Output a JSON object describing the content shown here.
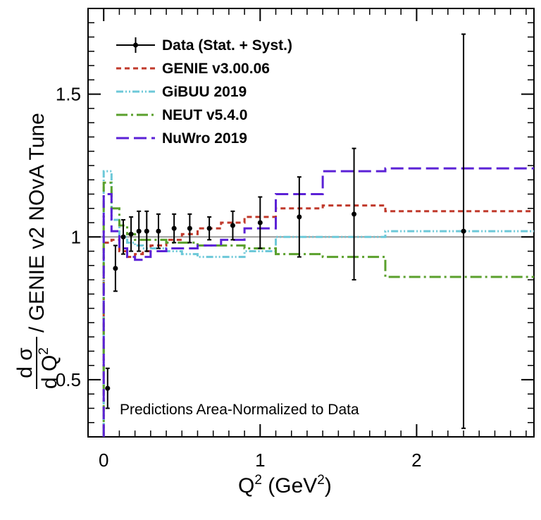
{
  "chart_data": {
    "type": "line",
    "xlabel": "Q",
    "xlabel_sup": "2",
    "xlabel_unit_open": " (GeV",
    "xlabel_unit_sup": "2",
    "xlabel_unit_close": ")",
    "ylabel": {
      "numerator": "d σ",
      "denominator": "d Q",
      "denominator_sup": "2",
      "rest": " / GENIE v2 NOvA Tune"
    },
    "annotation": "Predictions Area-Normalized to Data",
    "xlim": [
      -0.1,
      2.75
    ],
    "ylim": [
      0.3,
      1.8
    ],
    "x_ticks": [
      0,
      1,
      2
    ],
    "x_tick_labels": [
      "0",
      "1",
      "2"
    ],
    "y_ticks": [
      0.5,
      1.0,
      1.5
    ],
    "y_tick_labels": [
      "0.5",
      "1",
      "1.5"
    ],
    "reference_line": 1.0,
    "grid": false,
    "legend_position": "top-left",
    "data_series": {
      "name": "Data (Stat. + Syst.)",
      "color": "#000000",
      "points": [
        {
          "x": 0.025,
          "y": 0.47,
          "err": 0.07
        },
        {
          "x": 0.075,
          "y": 0.89,
          "err": 0.08
        },
        {
          "x": 0.125,
          "y": 1.0,
          "err": 0.06
        },
        {
          "x": 0.175,
          "y": 1.01,
          "err": 0.06
        },
        {
          "x": 0.225,
          "y": 1.02,
          "err": 0.07
        },
        {
          "x": 0.275,
          "y": 1.02,
          "err": 0.07
        },
        {
          "x": 0.35,
          "y": 1.02,
          "err": 0.06
        },
        {
          "x": 0.45,
          "y": 1.03,
          "err": 0.05
        },
        {
          "x": 0.55,
          "y": 1.03,
          "err": 0.05
        },
        {
          "x": 0.675,
          "y": 1.03,
          "err": 0.04
        },
        {
          "x": 0.825,
          "y": 1.04,
          "err": 0.05
        },
        {
          "x": 1.0,
          "y": 1.05,
          "err": 0.09
        },
        {
          "x": 1.25,
          "y": 1.07,
          "err": 0.14
        },
        {
          "x": 1.6,
          "y": 1.08,
          "err": 0.23
        },
        {
          "x": 2.3,
          "y": 1.02,
          "err": 0.69
        }
      ]
    },
    "bin_edges": [
      0,
      0.05,
      0.1,
      0.15,
      0.2,
      0.25,
      0.3,
      0.4,
      0.5,
      0.6,
      0.75,
      0.9,
      1.1,
      1.4,
      1.8,
      2.8
    ],
    "series": [
      {
        "name": "GENIE v3.00.06",
        "color": "#c0392b",
        "dash": "7,5",
        "start": 0.32,
        "values": [
          0.98,
          0.99,
          0.95,
          0.93,
          0.94,
          0.95,
          0.97,
          0.99,
          1.01,
          1.03,
          1.05,
          1.07,
          1.1,
          1.11,
          1.09
        ]
      },
      {
        "name": "GiBUU 2019",
        "color": "#6cc8d8",
        "dash": "10,3,2,3,2,3",
        "start": 0.32,
        "values": [
          1.23,
          1.06,
          1.0,
          0.98,
          0.97,
          0.96,
          0.96,
          0.95,
          0.94,
          0.93,
          0.93,
          0.95,
          1.0,
          1.0,
          1.02
        ]
      },
      {
        "name": "NEUT v5.4.0",
        "color": "#5aa02c",
        "dash": "16,5,3,5",
        "start": 0.32,
        "values": [
          1.19,
          1.1,
          1.04,
          1.01,
          0.99,
          0.99,
          0.99,
          0.98,
          0.98,
          0.97,
          0.97,
          0.96,
          0.94,
          0.93,
          0.86
        ]
      },
      {
        "name": "NuWro 2019",
        "color": "#5b21d6",
        "dash": "18,7",
        "start": 0.32,
        "values": [
          1.15,
          1.02,
          0.96,
          0.93,
          0.92,
          0.93,
          0.95,
          0.96,
          0.96,
          0.97,
          0.99,
          1.03,
          1.15,
          1.23,
          1.24
        ]
      }
    ]
  }
}
